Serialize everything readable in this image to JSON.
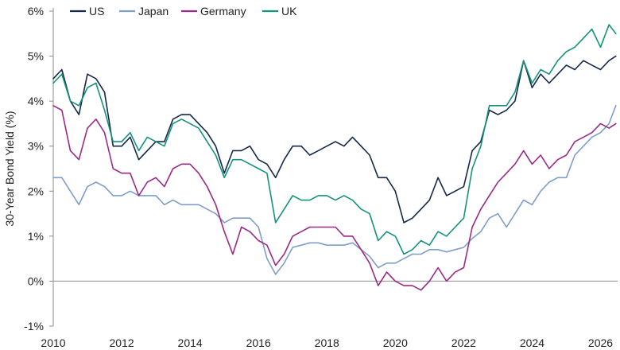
{
  "chart_data": {
    "type": "line",
    "title": "",
    "xlabel": "",
    "ylabel": "30-Year Bond Yield (%)",
    "xlim": [
      2010,
      2026.5
    ],
    "ylim": [
      -1,
      6
    ],
    "x_ticks": [
      2010,
      2012,
      2014,
      2016,
      2018,
      2020,
      2022,
      2024,
      2026
    ],
    "x_tick_labels": [
      "2010",
      "2012",
      "2014",
      "2016",
      "2018",
      "2020",
      "2022",
      "2024",
      "2026"
    ],
    "y_ticks": [
      -1,
      0,
      1,
      2,
      3,
      4,
      5,
      6
    ],
    "y_tick_labels": [
      "-1%",
      "0%",
      "1%",
      "2%",
      "3%",
      "4%",
      "5%",
      "6%"
    ],
    "grid": false,
    "legend_position": "top-left",
    "series": [
      {
        "name": "US",
        "color": "#14284b",
        "x": [
          2010.0,
          2010.25,
          2010.5,
          2010.75,
          2011.0,
          2011.25,
          2011.5,
          2011.75,
          2012.0,
          2012.25,
          2012.5,
          2012.75,
          2013.0,
          2013.25,
          2013.5,
          2013.75,
          2014.0,
          2014.25,
          2014.5,
          2014.75,
          2015.0,
          2015.25,
          2015.5,
          2015.75,
          2016.0,
          2016.25,
          2016.5,
          2016.75,
          2017.0,
          2017.25,
          2017.5,
          2017.75,
          2018.0,
          2018.25,
          2018.5,
          2018.75,
          2019.0,
          2019.25,
          2019.5,
          2019.75,
          2020.0,
          2020.25,
          2020.5,
          2020.75,
          2021.0,
          2021.25,
          2021.5,
          2021.75,
          2022.0,
          2022.25,
          2022.5,
          2022.75,
          2023.0,
          2023.25,
          2023.5,
          2023.75,
          2024.0,
          2024.25,
          2024.5,
          2024.75,
          2025.0,
          2025.25,
          2025.5,
          2025.75,
          2026.0,
          2026.25,
          2026.45
        ],
        "y": [
          4.5,
          4.7,
          4.0,
          3.7,
          4.6,
          4.5,
          4.2,
          3.0,
          3.0,
          3.2,
          2.7,
          2.9,
          3.1,
          3.1,
          3.6,
          3.7,
          3.7,
          3.5,
          3.3,
          3.0,
          2.4,
          2.9,
          2.9,
          3.0,
          2.7,
          2.6,
          2.3,
          2.7,
          3.0,
          3.0,
          2.8,
          2.9,
          3.0,
          3.1,
          3.0,
          3.2,
          3.0,
          2.8,
          2.3,
          2.3,
          2.0,
          1.3,
          1.4,
          1.6,
          1.8,
          2.3,
          1.9,
          2.0,
          2.1,
          2.9,
          3.1,
          3.8,
          3.7,
          3.8,
          4.0,
          4.9,
          4.3,
          4.6,
          4.4,
          4.6,
          4.8,
          4.7,
          4.9,
          4.8,
          4.7,
          4.9,
          5.0
        ]
      },
      {
        "name": "Japan",
        "color": "#7f9dc9",
        "x": [
          2010.0,
          2010.25,
          2010.5,
          2010.75,
          2011.0,
          2011.25,
          2011.5,
          2011.75,
          2012.0,
          2012.25,
          2012.5,
          2012.75,
          2013.0,
          2013.25,
          2013.5,
          2013.75,
          2014.0,
          2014.25,
          2014.5,
          2014.75,
          2015.0,
          2015.25,
          2015.5,
          2015.75,
          2016.0,
          2016.25,
          2016.5,
          2016.75,
          2017.0,
          2017.25,
          2017.5,
          2017.75,
          2018.0,
          2018.25,
          2018.5,
          2018.75,
          2019.0,
          2019.25,
          2019.5,
          2019.75,
          2020.0,
          2020.25,
          2020.5,
          2020.75,
          2021.0,
          2021.25,
          2021.5,
          2021.75,
          2022.0,
          2022.25,
          2022.5,
          2022.75,
          2023.0,
          2023.25,
          2023.5,
          2023.75,
          2024.0,
          2024.25,
          2024.5,
          2024.75,
          2025.0,
          2025.25,
          2025.5,
          2025.75,
          2026.0,
          2026.25,
          2026.45
        ],
        "y": [
          2.3,
          2.3,
          2.0,
          1.7,
          2.1,
          2.2,
          2.1,
          1.9,
          1.9,
          2.0,
          1.9,
          1.9,
          1.9,
          1.7,
          1.8,
          1.7,
          1.7,
          1.7,
          1.6,
          1.5,
          1.3,
          1.4,
          1.4,
          1.4,
          1.2,
          0.5,
          0.15,
          0.4,
          0.75,
          0.8,
          0.85,
          0.85,
          0.8,
          0.8,
          0.8,
          0.85,
          0.7,
          0.55,
          0.3,
          0.4,
          0.4,
          0.5,
          0.6,
          0.6,
          0.7,
          0.7,
          0.65,
          0.7,
          0.75,
          0.95,
          1.1,
          1.4,
          1.5,
          1.2,
          1.5,
          1.8,
          1.7,
          2.0,
          2.2,
          2.3,
          2.3,
          2.8,
          3.0,
          3.2,
          3.3,
          3.5,
          3.9
        ]
      },
      {
        "name": "Germany",
        "color": "#9b2a86",
        "x": [
          2010.0,
          2010.25,
          2010.5,
          2010.75,
          2011.0,
          2011.25,
          2011.5,
          2011.75,
          2012.0,
          2012.25,
          2012.5,
          2012.75,
          2013.0,
          2013.25,
          2013.5,
          2013.75,
          2014.0,
          2014.25,
          2014.5,
          2014.75,
          2015.0,
          2015.25,
          2015.5,
          2015.75,
          2016.0,
          2016.25,
          2016.5,
          2016.75,
          2017.0,
          2017.25,
          2017.5,
          2017.75,
          2018.0,
          2018.25,
          2018.5,
          2018.75,
          2019.0,
          2019.25,
          2019.5,
          2019.75,
          2020.0,
          2020.25,
          2020.5,
          2020.75,
          2021.0,
          2021.25,
          2021.5,
          2021.75,
          2022.0,
          2022.25,
          2022.5,
          2022.75,
          2023.0,
          2023.25,
          2023.5,
          2023.75,
          2024.0,
          2024.25,
          2024.5,
          2024.75,
          2025.0,
          2025.25,
          2025.5,
          2025.75,
          2026.0,
          2026.25,
          2026.45
        ],
        "y": [
          3.9,
          3.8,
          2.9,
          2.7,
          3.4,
          3.6,
          3.3,
          2.5,
          2.4,
          2.4,
          1.9,
          2.2,
          2.3,
          2.1,
          2.5,
          2.6,
          2.6,
          2.4,
          2.1,
          1.7,
          1.1,
          0.6,
          1.2,
          1.1,
          0.9,
          0.8,
          0.35,
          0.6,
          1.0,
          1.1,
          1.2,
          1.2,
          1.2,
          1.2,
          1.0,
          1.0,
          0.7,
          0.4,
          -0.1,
          0.2,
          0.0,
          -0.1,
          -0.1,
          -0.2,
          0.0,
          0.3,
          0.0,
          0.2,
          0.3,
          1.2,
          1.6,
          1.9,
          2.2,
          2.4,
          2.6,
          2.9,
          2.6,
          2.8,
          2.5,
          2.7,
          2.8,
          3.1,
          3.2,
          3.3,
          3.5,
          3.4,
          3.5
        ]
      },
      {
        "name": "UK",
        "color": "#13937c",
        "x": [
          2010.0,
          2010.25,
          2010.5,
          2010.75,
          2011.0,
          2011.25,
          2011.5,
          2011.75,
          2012.0,
          2012.25,
          2012.5,
          2012.75,
          2013.0,
          2013.25,
          2013.5,
          2013.75,
          2014.0,
          2014.25,
          2014.5,
          2014.75,
          2015.0,
          2015.25,
          2015.5,
          2015.75,
          2016.0,
          2016.25,
          2016.5,
          2016.75,
          2017.0,
          2017.25,
          2017.5,
          2017.75,
          2018.0,
          2018.25,
          2018.5,
          2018.75,
          2019.0,
          2019.25,
          2019.5,
          2019.75,
          2020.0,
          2020.25,
          2020.5,
          2020.75,
          2021.0,
          2021.25,
          2021.5,
          2021.75,
          2022.0,
          2022.25,
          2022.5,
          2022.75,
          2023.0,
          2023.25,
          2023.5,
          2023.75,
          2024.0,
          2024.25,
          2024.5,
          2024.75,
          2025.0,
          2025.25,
          2025.5,
          2025.75,
          2026.0,
          2026.25,
          2026.45
        ],
        "y": [
          4.4,
          4.6,
          4.0,
          3.9,
          4.3,
          4.4,
          3.8,
          3.1,
          3.1,
          3.3,
          2.9,
          3.2,
          3.1,
          3.0,
          3.5,
          3.6,
          3.5,
          3.4,
          3.1,
          2.8,
          2.3,
          2.7,
          2.7,
          2.6,
          2.5,
          2.4,
          1.3,
          1.6,
          1.9,
          1.8,
          1.8,
          1.9,
          1.9,
          1.8,
          1.9,
          1.8,
          1.6,
          1.5,
          0.9,
          1.1,
          1.0,
          0.6,
          0.7,
          0.9,
          0.8,
          1.1,
          1.0,
          1.2,
          1.4,
          2.5,
          3.0,
          3.9,
          3.9,
          3.9,
          4.2,
          4.9,
          4.4,
          4.7,
          4.6,
          4.9,
          5.1,
          5.2,
          5.4,
          5.6,
          5.2,
          5.7,
          5.5
        ]
      }
    ]
  }
}
